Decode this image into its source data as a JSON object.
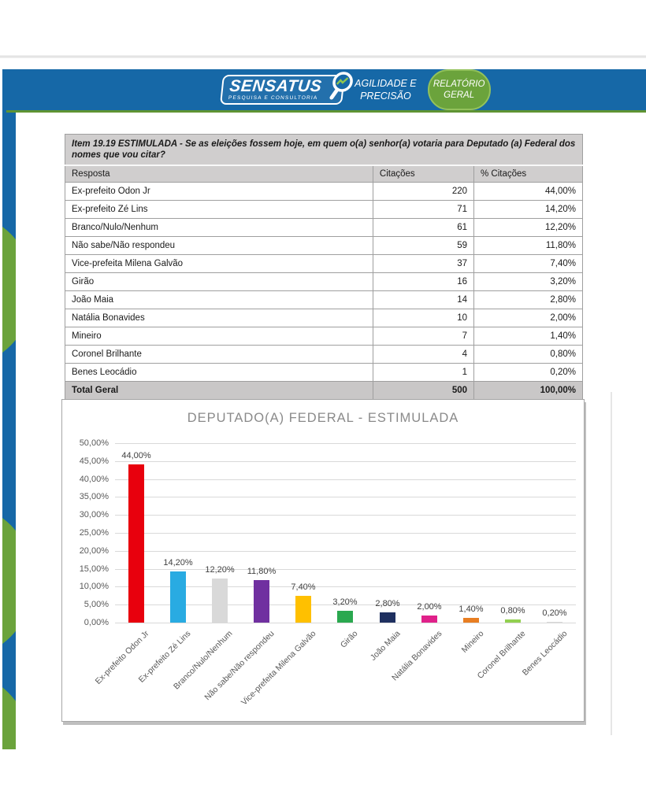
{
  "header": {
    "logo_text": "SENSATUS",
    "logo_sub": "PESQUISA E CONSULTORIA",
    "tagline_line1": "AGILIDADE E",
    "tagline_line2": "PRECISÃO",
    "button_line1": "RELATÓRIO",
    "button_line2": "GERAL",
    "bar_color": "#1668a7",
    "accent_green": "#6ba33c"
  },
  "table": {
    "question": "Item 19.19 ESTIMULADA - Se as eleições fossem hoje, em quem o(a) senhor(a) votaria para Deputado (a) Federal dos nomes que vou citar?",
    "columns": [
      "Resposta",
      "Citações",
      "% Citações"
    ],
    "rows": [
      [
        "Ex-prefeito Odon Jr",
        "220",
        "44,00%"
      ],
      [
        "Ex-prefeito Zé Lins",
        "71",
        "14,20%"
      ],
      [
        "Branco/Nulo/Nenhum",
        "61",
        "12,20%"
      ],
      [
        "Não sabe/Não respondeu",
        "59",
        "11,80%"
      ],
      [
        "Vice-prefeita Milena Galvão",
        "37",
        "7,40%"
      ],
      [
        "Girão",
        "16",
        "3,20%"
      ],
      [
        "João Maia",
        "14",
        "2,80%"
      ],
      [
        "Natália Bonavides",
        "10",
        "2,00%"
      ],
      [
        "Mineiro",
        "7",
        "1,40%"
      ],
      [
        "Coronel Brilhante",
        "4",
        "0,80%"
      ],
      [
        "Benes Leocádio",
        "1",
        "0,20%"
      ]
    ],
    "total": [
      "Total Geral",
      "500",
      "100,00%"
    ]
  },
  "chart_data": {
    "type": "bar",
    "title": "DEPUTADO(A) FEDERAL - ESTIMULADA",
    "categories": [
      "Ex-prefeito Odon Jr",
      "Ex-prefeito Zé Lins",
      "Branco/Nulo/Nenhum",
      "Não sabe/Não respondeu",
      "Vice-prefeita Milena Galvão",
      "Girão",
      "João Maia",
      "Natália Bonavides",
      "Mineiro",
      "Coronel Brilhante",
      "Benes Leocádio"
    ],
    "values": [
      44.0,
      14.2,
      12.2,
      11.8,
      7.4,
      3.2,
      2.8,
      2.0,
      1.4,
      0.8,
      0.2
    ],
    "value_labels": [
      "44,00%",
      "14,20%",
      "12,20%",
      "11,80%",
      "7,40%",
      "3,20%",
      "2,80%",
      "2,00%",
      "1,40%",
      "0,80%",
      "0,20%"
    ],
    "bar_colors": [
      "#e8000d",
      "#29abe2",
      "#d9d9d9",
      "#7030a0",
      "#ffc000",
      "#2aa84f",
      "#1f3060",
      "#e0218a",
      "#e87e22",
      "#92d050",
      "#d9d9d9"
    ],
    "ylim": [
      0,
      50
    ],
    "ytick_labels": [
      "50,00%",
      "45,00%",
      "40,00%",
      "35,00%",
      "30,00%",
      "25,00%",
      "20,00%",
      "15,00%",
      "10,00%",
      "5,00%",
      "0,00%"
    ],
    "xlabel": "",
    "ylabel": "",
    "grid": true,
    "legend": false
  }
}
